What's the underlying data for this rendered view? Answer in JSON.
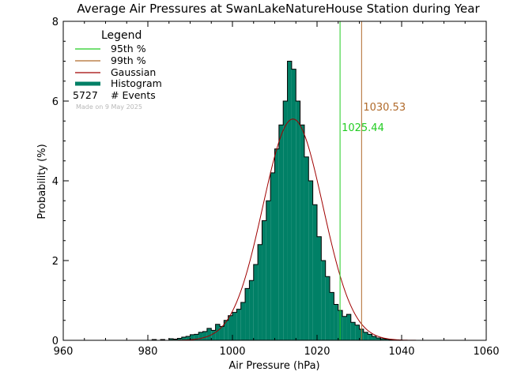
{
  "chart_data": {
    "type": "bar",
    "title": "Average Air Pressures at SwanLakeNatureHouse Station during Year",
    "xlabel": "Air Pressure (hPa)",
    "ylabel": "Probability (%)",
    "xlim": [
      960,
      1060
    ],
    "ylim": [
      0,
      8
    ],
    "x_ticks": [
      "960",
      "980",
      "1000",
      "1020",
      "1040",
      "1060"
    ],
    "y_ticks": [
      "0",
      "2",
      "4",
      "6",
      "8"
    ],
    "legend": {
      "title": "Legend",
      "items": [
        "95th %",
        "99th %",
        "Gaussian",
        "Histogram"
      ],
      "events_count": "5727",
      "events_label": "# Events",
      "made_on": "Made on 9 May 2025"
    },
    "percentile_95": {
      "value": 1025.44,
      "label": "1025.44"
    },
    "percentile_99": {
      "value": 1030.53,
      "label": "1030.53"
    },
    "gaussian": {
      "mean": 1014.3,
      "peak": 5.55,
      "sigma": 7.1
    },
    "histogram": {
      "bin_width": 1,
      "bin_starts": [
        981,
        982,
        983,
        984,
        985,
        986,
        987,
        988,
        989,
        990,
        991,
        992,
        993,
        994,
        995,
        996,
        997,
        998,
        999,
        1000,
        1001,
        1002,
        1003,
        1004,
        1005,
        1006,
        1007,
        1008,
        1009,
        1010,
        1011,
        1012,
        1013,
        1014,
        1015,
        1016,
        1017,
        1018,
        1019,
        1020,
        1021,
        1022,
        1023,
        1024,
        1025,
        1026,
        1027,
        1028,
        1029,
        1030,
        1031,
        1032,
        1033,
        1034,
        1035,
        1036,
        1037,
        1038,
        1039
      ],
      "values": [
        0.02,
        0.0,
        0.02,
        0.0,
        0.04,
        0.03,
        0.05,
        0.08,
        0.1,
        0.14,
        0.15,
        0.2,
        0.22,
        0.3,
        0.25,
        0.4,
        0.35,
        0.5,
        0.62,
        0.7,
        0.78,
        0.95,
        1.3,
        1.5,
        1.9,
        2.4,
        3.0,
        3.5,
        4.2,
        4.8,
        5.4,
        6.0,
        7.0,
        6.8,
        6.0,
        5.4,
        4.6,
        4.0,
        3.4,
        2.6,
        2.0,
        1.6,
        1.2,
        0.9,
        0.75,
        0.6,
        0.65,
        0.45,
        0.38,
        0.28,
        0.2,
        0.15,
        0.1,
        0.06,
        0.04,
        0.03,
        0.02,
        0.01,
        0.01
      ]
    },
    "colors": {
      "histogram": "#008066",
      "p95": "#22cc22",
      "p99": "#b06a2a",
      "gaussian": "#a00000",
      "made_on": "#b8b8b8"
    }
  }
}
